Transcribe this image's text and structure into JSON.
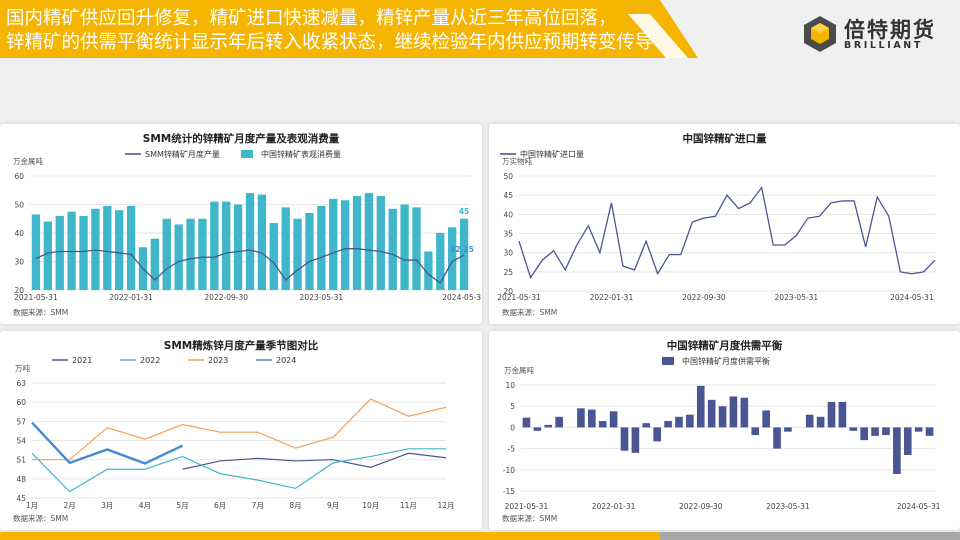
{
  "header": {
    "line1": "国内精矿供应回升修复，精矿进口快速减量，精锌产量从近三年高位回落，",
    "line2": "锌精矿的供需平衡统计显示年后转入收紧状态，继续检验年内供应预期转变传导"
  },
  "logo": {
    "name_cn": "倍特期货",
    "name_en": "BRILLIANT"
  },
  "colors": {
    "banner": "#f5b400",
    "navy": "#4a5694",
    "teal": "#3fb6c9",
    "orange": "#f0a15a",
    "blue": "#4a8ad2"
  },
  "chart_data": [
    {
      "type": "bar",
      "title": "SMM统计的锌精矿月度产量及表观消费量",
      "ylabel": "万金属吨",
      "ylim": [
        20,
        60
      ],
      "yticks": [
        "20",
        "30",
        "40",
        "50",
        "60"
      ],
      "xtick_labels": [
        "2021-05-31",
        "2022-01-31",
        "2022-09-30",
        "2023-05-31",
        "2024-05-31"
      ],
      "source": "数据来源：SMM",
      "series": [
        {
          "name": "SMM锌精矿月度产量",
          "type": "line",
          "values": [
            31,
            33,
            33.5,
            33.5,
            33.5,
            34,
            33.5,
            33,
            32.5,
            27.5,
            23.5,
            27.5,
            30,
            31,
            31.5,
            31.5,
            33,
            33.5,
            34,
            33,
            29.5,
            23.5,
            27,
            30,
            31.5,
            33,
            34.5,
            34.5,
            34,
            33.5,
            32.5,
            30.5,
            30.5,
            25.5,
            22.5,
            30,
            32.25
          ],
          "end_label": "32.25"
        },
        {
          "name": "中国锌精矿表观消费量",
          "type": "bar",
          "values": [
            46.5,
            44,
            46,
            47.5,
            46,
            48.5,
            49.5,
            48,
            49.5,
            35,
            38,
            45,
            43,
            45,
            45,
            51,
            51,
            50,
            54,
            53.5,
            43.5,
            49,
            45,
            47,
            49.5,
            52,
            51.5,
            53,
            54,
            53,
            48.5,
            50,
            49,
            33.5,
            40,
            42,
            45
          ],
          "end_label": "45"
        }
      ]
    },
    {
      "type": "line",
      "title": "中国锌精矿进口量",
      "ylabel": "万实物吨",
      "ylim": [
        20,
        50
      ],
      "yticks": [
        "20",
        "25",
        "30",
        "35",
        "40",
        "45",
        "50"
      ],
      "xtick_labels": [
        "2021-05-31",
        "2022-01-31",
        "2022-09-30",
        "2023-05-31",
        "2024-05-31"
      ],
      "source": "数据来源：SMM",
      "series": [
        {
          "name": "中国锌精矿进口量",
          "values": [
            33,
            23.5,
            28,
            30.5,
            25.5,
            32,
            37,
            30,
            43,
            26.5,
            25.5,
            33,
            24.5,
            29.5,
            29.5,
            38,
            39,
            39.5,
            45,
            41.5,
            43,
            47,
            32,
            32,
            34.5,
            39,
            39.5,
            43,
            43.5,
            43.5,
            31.5,
            44.5,
            39.5,
            25,
            24.5,
            25,
            28
          ]
        }
      ]
    },
    {
      "type": "line",
      "title": "SMM精炼锌月度产量季节图对比",
      "ylabel": "万吨",
      "ylim": [
        45,
        63
      ],
      "yticks": [
        "45",
        "48",
        "51",
        "54",
        "57",
        "60",
        "63"
      ],
      "categories": [
        "1月",
        "2月",
        "3月",
        "4月",
        "5月",
        "6月",
        "7月",
        "8月",
        "9月",
        "10月",
        "11月",
        "12月"
      ],
      "source": "数据来源：SMM",
      "series": [
        {
          "name": "2021",
          "values": [
            null,
            null,
            null,
            null,
            49.5,
            50.8,
            51.2,
            50.8,
            51,
            49.8,
            52,
            51.3
          ]
        },
        {
          "name": "2022",
          "values": [
            52,
            46,
            49.5,
            49.5,
            51.5,
            48.8,
            47.8,
            46.5,
            50.5,
            51.5,
            52.7,
            52.7
          ]
        },
        {
          "name": "2023",
          "values": [
            51,
            51,
            56,
            54.2,
            56.5,
            55.3,
            55.3,
            52.8,
            54.5,
            60.5,
            57.8,
            59.2
          ]
        },
        {
          "name": "2024",
          "values": [
            56.8,
            50.5,
            52.6,
            50.4,
            53.2,
            null,
            null,
            null,
            null,
            null,
            null,
            null
          ]
        }
      ]
    },
    {
      "type": "bar",
      "title": "中国锌精矿月度供需平衡",
      "ylabel": "万金属吨",
      "ylim": [
        -15,
        10
      ],
      "yticks": [
        "-15",
        "-10",
        "-5",
        "0",
        "5",
        "10"
      ],
      "xtick_labels": [
        "2021-05-31",
        "2022-01-31",
        "2022-09-30",
        "2023-05-31",
        "2024-05-31"
      ],
      "source": "数据来源：SMM",
      "series": [
        {
          "name": "中国锌精矿月度供需平衡",
          "values": [
            2.3,
            -0.8,
            0.6,
            2.5,
            0,
            4.5,
            4.2,
            1.5,
            3.8,
            -5.5,
            -6,
            1,
            -3.3,
            1.5,
            2.5,
            3,
            9.8,
            6.5,
            5,
            7.3,
            7,
            -1.8,
            4,
            -5,
            -1,
            0,
            3,
            2.5,
            6,
            6,
            -0.8,
            -3,
            -2,
            -1.8,
            -11,
            -6.5,
            -1,
            -2
          ]
        }
      ]
    }
  ]
}
